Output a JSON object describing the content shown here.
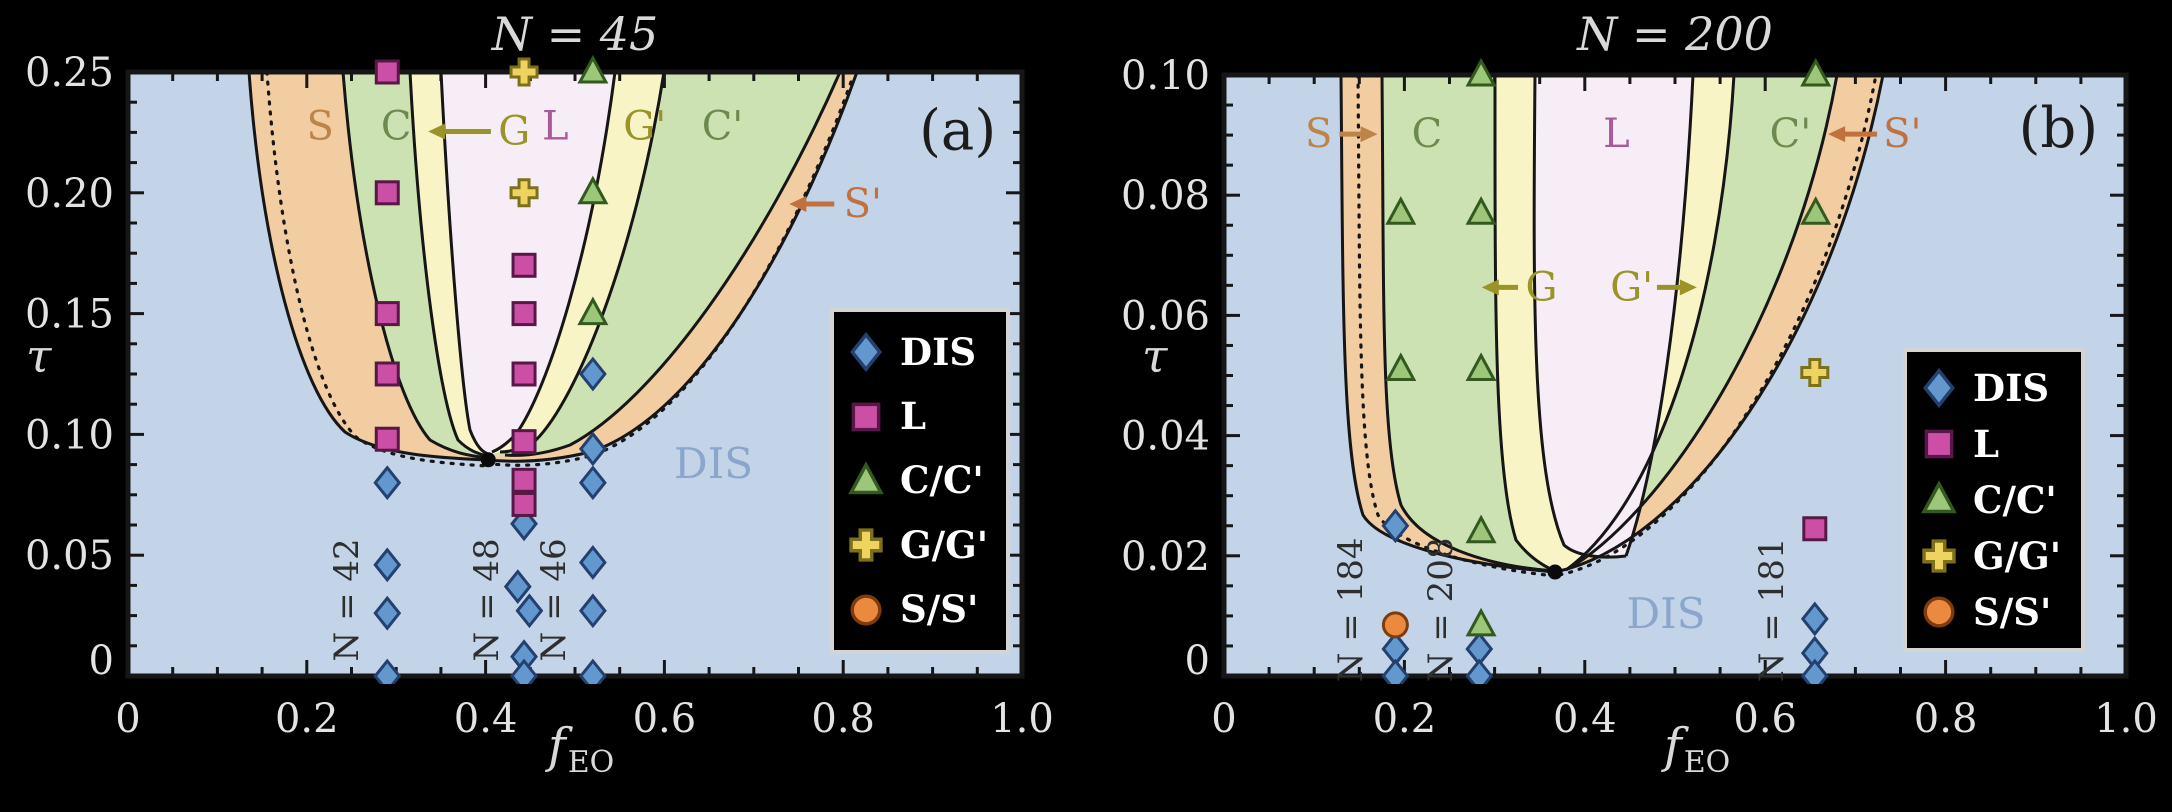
{
  "chart_data": [
    {
      "type": "scatter",
      "panel": "a",
      "title": "N = 45",
      "panel_label": "(a)",
      "xlabel_main": "f",
      "xlabel_sub": "EO",
      "ylabel": "τ",
      "xlim": [
        0,
        1
      ],
      "ylim": [
        0,
        0.25
      ],
      "grid": false,
      "x_ticks": [
        {
          "v": 0,
          "label": "0"
        },
        {
          "v": 0.2,
          "label": "0.2"
        },
        {
          "v": 0.4,
          "label": "0.4"
        },
        {
          "v": 0.6,
          "label": "0.6"
        },
        {
          "v": 0.8,
          "label": "0.8"
        },
        {
          "v": 1.0,
          "label": "1.0"
        }
      ],
      "y_ticks": [
        {
          "v": 0.25,
          "label": "0.25"
        },
        {
          "v": 0.2,
          "label": "0.20"
        },
        {
          "v": 0.15,
          "label": "0.15"
        },
        {
          "v": 0.1,
          "label": "0.10"
        },
        {
          "v": 0.05,
          "label": "0.05"
        },
        {
          "v": 0,
          "label": "0"
        }
      ],
      "regions": [
        "DIS",
        "S",
        "C",
        "G",
        "L",
        "G'",
        "C'",
        "S'"
      ],
      "region_labels": [
        {
          "text": "S",
          "f": 0.215,
          "tau": 0.222,
          "color": "#bd8448"
        },
        {
          "text": "C",
          "f": 0.3,
          "tau": 0.222,
          "color": "#6d8a4e"
        },
        {
          "text": "G",
          "f": 0.432,
          "tau": 0.22,
          "color": "#9a9428",
          "arrow": {
            "tail_f": 0.406,
            "head_f": 0.338,
            "tau": 0.22
          }
        },
        {
          "text": "L",
          "f": 0.478,
          "tau": 0.222,
          "color": "#a85a9a"
        },
        {
          "text": "G'",
          "f": 0.578,
          "tau": 0.222,
          "color": "#9a9428"
        },
        {
          "text": "C'",
          "f": 0.665,
          "tau": 0.222,
          "color": "#6d8a4e"
        },
        {
          "text": "S'",
          "f": 0.822,
          "tau": 0.19,
          "color": "#c1713d",
          "arrow": {
            "tail_f": 0.79,
            "head_f": 0.742,
            "tau": 0.19
          }
        },
        {
          "text": "DIS",
          "f": 0.655,
          "tau": 0.082,
          "color": "#8aa6cc",
          "size": 42
        },
        {
          "text": "(a)",
          "f": 0.928,
          "tau": 0.218,
          "color": "#1c1c1c",
          "size": 56,
          "font": "sans"
        }
      ],
      "annotations": [
        {
          "text": "N = 42",
          "f": 0.257,
          "tau": 0.0315
        },
        {
          "text": "N = 48",
          "f": 0.414,
          "tau": 0.0315
        },
        {
          "text": "N = 46",
          "f": 0.489,
          "tau": 0.0315
        }
      ],
      "critical_point": {
        "f": 0.403,
        "tau": 0.0895
      },
      "series": [
        {
          "phase": "DIS",
          "marker": "diamond",
          "points": [
            [
              0.29,
              0.08
            ],
            [
              0.29,
              0.046
            ],
            [
              0.29,
              0.026
            ],
            [
              0.29,
              0
            ],
            [
              0.443,
              0.063
            ],
            [
              0.436,
              0.037
            ],
            [
              0.449,
              0.027
            ],
            [
              0.443,
              0.008
            ],
            [
              0.443,
              0
            ],
            [
              0.52,
              0.125
            ],
            [
              0.52,
              0.094
            ],
            [
              0.52,
              0.08
            ],
            [
              0.52,
              0.047
            ],
            [
              0.52,
              0.027
            ],
            [
              0.52,
              0
            ]
          ]
        },
        {
          "phase": "L",
          "marker": "square",
          "points": [
            [
              0.29,
              0.25
            ],
            [
              0.29,
              0.2
            ],
            [
              0.29,
              0.15
            ],
            [
              0.29,
              0.125
            ],
            [
              0.29,
              0.098
            ],
            [
              0.443,
              0.17
            ],
            [
              0.443,
              0.15
            ],
            [
              0.443,
              0.125
            ],
            [
              0.443,
              0.097
            ],
            [
              0.443,
              0.081
            ],
            [
              0.443,
              0.071
            ]
          ]
        },
        {
          "phase": "C/C'",
          "marker": "triangle",
          "points": [
            [
              0.52,
              0.25
            ],
            [
              0.52,
              0.2
            ],
            [
              0.52,
              0.15
            ]
          ]
        },
        {
          "phase": "G/G'",
          "marker": "cross",
          "points": [
            [
              0.443,
              0.25
            ],
            [
              0.443,
              0.2
            ]
          ]
        }
      ]
    },
    {
      "type": "scatter",
      "panel": "b",
      "title": "N = 200",
      "panel_label": "(b)",
      "xlabel_main": "f",
      "xlabel_sub": "EO",
      "ylabel": "τ",
      "xlim": [
        0,
        1
      ],
      "ylim": [
        0,
        0.1
      ],
      "grid": false,
      "x_ticks": [
        {
          "v": 0,
          "label": "0"
        },
        {
          "v": 0.2,
          "label": "0.2"
        },
        {
          "v": 0.4,
          "label": "0.4"
        },
        {
          "v": 0.6,
          "label": "0.6"
        },
        {
          "v": 0.8,
          "label": "0.8"
        },
        {
          "v": 1.0,
          "label": "1.0"
        }
      ],
      "y_ticks": [
        {
          "v": 0.1,
          "label": "0.10"
        },
        {
          "v": 0.08,
          "label": "0.08"
        },
        {
          "v": 0.06,
          "label": "0.06"
        },
        {
          "v": 0.04,
          "label": "0.04"
        },
        {
          "v": 0.02,
          "label": "0.02"
        },
        {
          "v": 0,
          "label": "0"
        }
      ],
      "regions": [
        "DIS",
        "S",
        "C",
        "G",
        "L",
        "G'",
        "C'",
        "S'"
      ],
      "region_labels": [
        {
          "text": "S",
          "f": 0.105,
          "tau": 0.088,
          "color": "#bd8448",
          "arrow": {
            "tail_f": 0.128,
            "head_f": 0.168,
            "tau": 0.088
          }
        },
        {
          "text": "C",
          "f": 0.225,
          "tau": 0.088,
          "color": "#6d8a4e"
        },
        {
          "text": "L",
          "f": 0.435,
          "tau": 0.088,
          "color": "#a85a9a"
        },
        {
          "text": "C'",
          "f": 0.628,
          "tau": 0.088,
          "color": "#6d8a4e"
        },
        {
          "text": "S'",
          "f": 0.752,
          "tau": 0.088,
          "color": "#c1713d",
          "arrow": {
            "tail_f": 0.724,
            "head_f": 0.672,
            "tau": 0.088
          }
        },
        {
          "text": "G",
          "f": 0.352,
          "tau": 0.0625,
          "color": "#9a9428",
          "arrow": {
            "tail_f": 0.326,
            "head_f": 0.288,
            "tau": 0.0625
          }
        },
        {
          "text": "G'",
          "f": 0.452,
          "tau": 0.0625,
          "color": "#9a9428",
          "arrow": {
            "tail_f": 0.48,
            "head_f": 0.522,
            "tau": 0.0625
          }
        },
        {
          "text": "DIS",
          "f": 0.49,
          "tau": 0.008,
          "color": "#8aa6cc",
          "size": 42
        },
        {
          "text": "(b)",
          "f": 0.925,
          "tau": 0.088,
          "color": "#1c1c1c",
          "size": 56,
          "font": "sans"
        }
      ],
      "annotations": [
        {
          "text": "N = 184",
          "f": 0.153,
          "tau": 0.011
        },
        {
          "text": "N = 208",
          "f": 0.253,
          "tau": 0.011
        },
        {
          "text": "N = 181",
          "f": 0.62,
          "tau": 0.011
        }
      ],
      "critical_point": {
        "f": 0.367,
        "tau": 0.0173
      },
      "series": [
        {
          "phase": "DIS",
          "marker": "diamond",
          "points": [
            [
              0.19,
              0.025
            ],
            [
              0.19,
              0.0045
            ],
            [
              0.19,
              0
            ],
            [
              0.283,
              0.0045
            ],
            [
              0.283,
              0
            ],
            [
              0.655,
              0.0095
            ],
            [
              0.655,
              0.0038
            ],
            [
              0.655,
              0
            ]
          ]
        },
        {
          "phase": "L",
          "marker": "square",
          "points": [
            [
              0.655,
              0.0245
            ]
          ]
        },
        {
          "phase": "C/C'",
          "marker": "triangle",
          "points": [
            [
              0.285,
              0.1
            ],
            [
              0.196,
              0.077
            ],
            [
              0.285,
              0.077
            ],
            [
              0.196,
              0.051
            ],
            [
              0.285,
              0.051
            ],
            [
              0.285,
              0.024
            ],
            [
              0.285,
              0.0085
            ],
            [
              0.656,
              0.1
            ],
            [
              0.656,
              0.077
            ]
          ]
        },
        {
          "phase": "G/G'",
          "marker": "cross",
          "points": [
            [
              0.655,
              0.0505
            ]
          ]
        },
        {
          "phase": "S/S'",
          "marker": "circle",
          "points": [
            [
              0.19,
              0.0085
            ]
          ]
        }
      ]
    }
  ],
  "legend": {
    "entries": [
      {
        "label": "DIS",
        "marker": "diamond"
      },
      {
        "label": "L",
        "marker": "square"
      },
      {
        "label": "C/C'",
        "marker": "triangle"
      },
      {
        "label": "G/G'",
        "marker": "cross"
      },
      {
        "label": "S/S'",
        "marker": "circle"
      }
    ]
  },
  "chart_meta": {
    "markers": {
      "diamond": {
        "fill": "#6398cf",
        "stroke": "#24406e"
      },
      "square": {
        "fill": "#cb4fa5",
        "stroke": "#571846"
      },
      "triangle": {
        "fill": "#9cc779",
        "stroke": "#33591f"
      },
      "cross": {
        "fill": "#eed45f",
        "stroke": "#7d701c"
      },
      "circle": {
        "fill": "#eb8a3e",
        "stroke": "#7c3c10"
      }
    },
    "colors": {
      "background": "#000000",
      "region_dis": "#c4d4e8",
      "region_s": "#f2cda2",
      "region_c": "#cde2b2",
      "region_g": "#f8f4c6",
      "region_l": "#f7edf6",
      "boundary": "#161616",
      "outside_text": "#e3e3e3",
      "legend_bg": "#000000",
      "legend_text": "#ffffff"
    }
  }
}
